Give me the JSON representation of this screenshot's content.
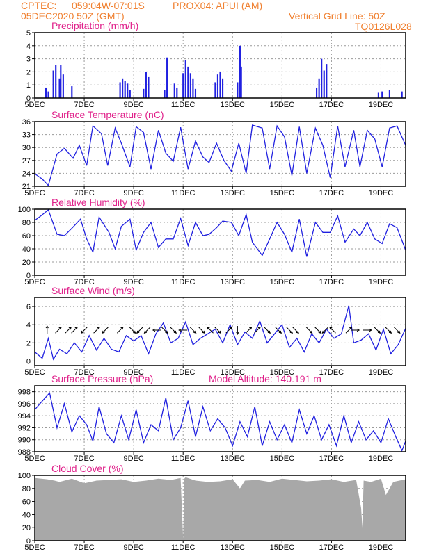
{
  "header": {
    "source": "CPTEC:",
    "location": "059:04W-07:01S",
    "station": "PROX04: APUI (AM)",
    "run": "05DEC2020 50Z (GMT)",
    "grid_note": "Vertical Grid Line: 50Z",
    "code": "TQ0126L028"
  },
  "colors": {
    "header": "#f08030",
    "title": "#e0208a",
    "series": "#2020e0",
    "cloud": "#a8a8a8"
  },
  "chart_data": [
    {
      "type": "bar",
      "title": "Precipitation (mm/h)",
      "x_ticks": [
        "5DEC",
        "7DEC",
        "9DEC",
        "11DEC",
        "13DEC",
        "15DEC",
        "17DEC",
        "19DEC"
      ],
      "x_range": [
        0,
        15
      ],
      "ylim": [
        0,
        5
      ],
      "y_ticks": [
        0,
        1,
        2,
        3,
        4,
        5
      ],
      "grid": true,
      "bars": [
        {
          "x": 0.45,
          "y": 0.8
        },
        {
          "x": 0.55,
          "y": 0.5
        },
        {
          "x": 0.75,
          "y": 2.1
        },
        {
          "x": 0.85,
          "y": 2.5
        },
        {
          "x": 1.0,
          "y": 1.5
        },
        {
          "x": 1.05,
          "y": 2.5
        },
        {
          "x": 1.15,
          "y": 1.8
        },
        {
          "x": 1.5,
          "y": 0.9
        },
        {
          "x": 3.45,
          "y": 1.2
        },
        {
          "x": 3.55,
          "y": 1.5
        },
        {
          "x": 3.65,
          "y": 1.3
        },
        {
          "x": 3.75,
          "y": 1.1
        },
        {
          "x": 3.85,
          "y": 0.6
        },
        {
          "x": 4.4,
          "y": 0.7
        },
        {
          "x": 4.5,
          "y": 2.0
        },
        {
          "x": 4.6,
          "y": 1.6
        },
        {
          "x": 5.25,
          "y": 0.6
        },
        {
          "x": 5.35,
          "y": 3.1
        },
        {
          "x": 5.65,
          "y": 1.1
        },
        {
          "x": 5.75,
          "y": 0.8
        },
        {
          "x": 6.0,
          "y": 1.9
        },
        {
          "x": 6.1,
          "y": 2.9
        },
        {
          "x": 6.2,
          "y": 2.4
        },
        {
          "x": 6.3,
          "y": 1.9
        },
        {
          "x": 6.4,
          "y": 1.5
        },
        {
          "x": 6.5,
          "y": 0.7
        },
        {
          "x": 7.3,
          "y": 1.2
        },
        {
          "x": 7.4,
          "y": 1.8
        },
        {
          "x": 7.5,
          "y": 2.0
        },
        {
          "x": 7.6,
          "y": 1.5
        },
        {
          "x": 8.2,
          "y": 1.2
        },
        {
          "x": 8.3,
          "y": 4.0
        },
        {
          "x": 8.35,
          "y": 2.4
        },
        {
          "x": 11.4,
          "y": 0.8
        },
        {
          "x": 11.5,
          "y": 1.5
        },
        {
          "x": 11.6,
          "y": 3.0
        },
        {
          "x": 11.7,
          "y": 2.1
        },
        {
          "x": 11.8,
          "y": 2.6
        },
        {
          "x": 13.9,
          "y": 0.4
        },
        {
          "x": 14.05,
          "y": 0.5
        },
        {
          "x": 14.35,
          "y": 0.6
        },
        {
          "x": 14.85,
          "y": 0.5
        }
      ]
    },
    {
      "type": "line",
      "title": "Surface Temperature (nC)",
      "x_ticks": [
        "5DEC",
        "7DEC",
        "9DEC",
        "11DEC",
        "13DEC",
        "15DEC",
        "17DEC",
        "19DEC"
      ],
      "x_range": [
        0,
        15
      ],
      "ylim": [
        21,
        36
      ],
      "y_ticks": [
        21,
        24,
        27,
        30,
        33,
        36
      ],
      "grid": true,
      "x": [
        0,
        0.3,
        0.55,
        0.9,
        1.2,
        1.55,
        1.8,
        2.1,
        2.35,
        2.7,
        2.95,
        3.25,
        3.5,
        3.85,
        4.1,
        4.4,
        4.7,
        5.0,
        5.3,
        5.6,
        5.9,
        6.2,
        6.5,
        6.8,
        7.05,
        7.35,
        7.65,
        7.95,
        8.25,
        8.55,
        8.8,
        9.2,
        9.5,
        9.8,
        10.1,
        10.4,
        10.7,
        11.0,
        11.35,
        11.65,
        11.95,
        12.25,
        12.55,
        12.9,
        13.15,
        13.45,
        13.75,
        14.05,
        14.35,
        14.65,
        15.0
      ],
      "y": [
        23.9,
        22.7,
        21.2,
        28.5,
        29.8,
        27.5,
        30.5,
        25.8,
        35.0,
        33.2,
        25.8,
        34.5,
        31.0,
        25.5,
        34.8,
        33.5,
        25.0,
        34.0,
        28.7,
        26.8,
        34.7,
        25.0,
        31.5,
        27.8,
        26.5,
        31.0,
        27.0,
        24.5,
        31.0,
        24.0,
        35.2,
        34.5,
        25.0,
        35.0,
        32.5,
        23.5,
        34.8,
        24.0,
        34.5,
        30.5,
        23.0,
        35.0,
        25.5,
        34.0,
        25.5,
        34.0,
        32.0,
        25.5,
        34.5,
        35.0,
        30.5
      ]
    },
    {
      "type": "line",
      "title": "Relative Humidity (%)",
      "x_ticks": [
        "5DEC",
        "7DEC",
        "9DEC",
        "11DEC",
        "13DEC",
        "15DEC",
        "17DEC",
        "19DEC"
      ],
      "x_range": [
        0,
        15
      ],
      "ylim": [
        0,
        100
      ],
      "y_ticks": [
        0,
        20,
        40,
        60,
        80,
        100
      ],
      "grid": true,
      "x": [
        0,
        0.25,
        0.55,
        0.9,
        1.2,
        1.55,
        1.85,
        2.1,
        2.35,
        2.6,
        3.0,
        3.25,
        3.5,
        3.85,
        4.1,
        4.4,
        4.7,
        5.0,
        5.3,
        5.6,
        5.9,
        6.2,
        6.5,
        6.8,
        7.05,
        7.35,
        7.6,
        7.95,
        8.25,
        8.55,
        8.8,
        9.2,
        9.5,
        9.8,
        10.1,
        10.4,
        10.7,
        11.0,
        11.35,
        11.65,
        11.95,
        12.25,
        12.55,
        12.9,
        13.15,
        13.45,
        13.75,
        14.05,
        14.35,
        14.65,
        15.0
      ],
      "y": [
        83,
        90,
        99,
        62,
        60,
        73,
        85,
        55,
        35,
        88,
        65,
        40,
        74,
        85,
        38,
        65,
        80,
        42,
        55,
        55,
        86,
        45,
        80,
        60,
        62,
        72,
        82,
        80,
        60,
        92,
        50,
        30,
        55,
        80,
        62,
        35,
        85,
        28,
        80,
        65,
        65,
        90,
        50,
        70,
        60,
        80,
        55,
        48,
        78,
        72,
        38
      ]
    },
    {
      "type": "line",
      "title": "Surface Wind (m/s)",
      "x_ticks": [
        "5DEC",
        "7DEC",
        "9DEC",
        "11DEC",
        "13DEC",
        "15DEC",
        "17DEC",
        "19DEC"
      ],
      "x_range": [
        0,
        15
      ],
      "ylim": [
        -0.5,
        7
      ],
      "y_ticks": [
        0,
        2,
        4,
        6
      ],
      "grid": true,
      "x": [
        0,
        0.3,
        0.55,
        0.75,
        1.0,
        1.3,
        1.6,
        1.9,
        2.2,
        2.5,
        2.8,
        3.1,
        3.4,
        3.7,
        4.0,
        4.3,
        4.6,
        4.9,
        5.2,
        5.5,
        5.8,
        6.1,
        6.4,
        6.7,
        7.0,
        7.3,
        7.6,
        7.9,
        8.2,
        8.5,
        8.8,
        9.1,
        9.4,
        9.7,
        10.0,
        10.3,
        10.6,
        10.9,
        11.2,
        11.5,
        11.8,
        12.1,
        12.4,
        12.7,
        12.9,
        13.2,
        13.5,
        13.8,
        14.1,
        14.4,
        14.7,
        15.0
      ],
      "y": [
        1.0,
        0.3,
        2.5,
        0.2,
        1.3,
        0.8,
        2.0,
        1.0,
        2.8,
        1.2,
        2.5,
        1.3,
        1.0,
        2.8,
        2.2,
        2.8,
        0.8,
        3.0,
        4.2,
        2.0,
        2.5,
        4.3,
        1.8,
        2.5,
        3.0,
        3.5,
        2.0,
        4.0,
        1.8,
        3.2,
        2.5,
        4.4,
        2.0,
        3.0,
        4.0,
        1.5,
        2.5,
        1.0,
        3.0,
        2.0,
        3.5,
        2.5,
        3.0,
        6.1,
        2.0,
        2.3,
        3.0,
        1.2,
        3.5,
        0.8,
        1.8,
        3.6
      ]
    },
    {
      "type": "line",
      "title": "Surface Pressure (hPa)",
      "annotation": "Model Altitude: 140.191 m",
      "x_ticks": [
        "5DEC",
        "7DEC",
        "9DEC",
        "11DEC",
        "13DEC",
        "15DEC",
        "17DEC",
        "19DEC"
      ],
      "x_range": [
        0,
        15
      ],
      "ylim": [
        988,
        999
      ],
      "y_ticks": [
        988,
        990,
        992,
        994,
        996,
        998
      ],
      "grid": true,
      "x": [
        0,
        0.25,
        0.6,
        0.9,
        1.2,
        1.5,
        1.8,
        2.1,
        2.35,
        2.6,
        2.9,
        3.2,
        3.5,
        3.8,
        4.1,
        4.4,
        4.7,
        5.0,
        5.3,
        5.6,
        5.9,
        6.2,
        6.5,
        6.8,
        7.1,
        7.4,
        7.7,
        8.0,
        8.3,
        8.6,
        8.9,
        9.2,
        9.5,
        9.8,
        10.1,
        10.4,
        10.7,
        11.0,
        11.3,
        11.6,
        11.9,
        12.2,
        12.5,
        12.8,
        13.1,
        13.4,
        13.7,
        14.0,
        14.3,
        14.6,
        14.85,
        15.0
      ],
      "y": [
        995.0,
        996.2,
        997.8,
        992.0,
        996.0,
        991.3,
        994.0,
        992.5,
        989.8,
        995.5,
        991.0,
        989.5,
        994.0,
        990.0,
        995.0,
        989.5,
        992.5,
        991.5,
        997.0,
        990.0,
        992.0,
        996.5,
        990.5,
        995.5,
        991.5,
        993.5,
        992.0,
        989.0,
        993.0,
        990.5,
        995.5,
        989.0,
        993.0,
        990.0,
        992.5,
        989.5,
        995.0,
        991.0,
        994.0,
        990.0,
        992.5,
        989.0,
        994.0,
        989.5,
        993.0,
        990.0,
        991.5,
        989.5,
        993.5,
        990.5,
        988.2,
        989.8
      ]
    },
    {
      "type": "area",
      "title": "Cloud Cover (%)",
      "x_ticks": [
        "5DEC",
        "7DEC",
        "9DEC",
        "11DEC",
        "13DEC",
        "15DEC",
        "17DEC",
        "19DEC"
      ],
      "x_range": [
        0,
        15
      ],
      "ylim": [
        0,
        100
      ],
      "y_ticks": [
        0,
        20,
        40,
        60,
        80,
        100
      ],
      "grid": true,
      "x": [
        0,
        0.5,
        0.8,
        1.0,
        1.5,
        2.0,
        2.5,
        3.0,
        3.5,
        4.0,
        4.5,
        5.0,
        5.5,
        5.9,
        6.0,
        6.05,
        6.1,
        6.5,
        7.0,
        7.5,
        8.0,
        8.3,
        8.5,
        9.0,
        9.5,
        10.0,
        10.5,
        11.0,
        11.5,
        12.0,
        12.5,
        13.0,
        13.2,
        13.25,
        13.3,
        13.6,
        14.0,
        14.2,
        14.5,
        15.0
      ],
      "y": [
        96,
        94,
        92,
        90,
        95,
        88,
        92,
        93,
        94,
        90,
        92,
        95,
        93,
        96,
        3,
        95,
        97,
        92,
        90,
        91,
        94,
        80,
        92,
        93,
        90,
        95,
        93,
        91,
        92,
        94,
        90,
        93,
        50,
        20,
        92,
        90,
        95,
        70,
        90,
        94
      ]
    }
  ],
  "wind_arrows": [
    {
      "x": 0.5,
      "dir": "N"
    },
    {
      "x": 0.95,
      "dir": "NE"
    },
    {
      "x": 1.35,
      "dir": "NE"
    },
    {
      "x": 1.6,
      "dir": "NE"
    },
    {
      "x": 2.0,
      "dir": "SW"
    },
    {
      "x": 2.5,
      "dir": "NE"
    },
    {
      "x": 2.85,
      "dir": "SW"
    },
    {
      "x": 3.45,
      "dir": "NE"
    },
    {
      "x": 3.95,
      "dir": "SE"
    },
    {
      "x": 4.25,
      "dir": "SW"
    },
    {
      "x": 4.55,
      "dir": "SW"
    },
    {
      "x": 4.95,
      "dir": "W"
    },
    {
      "x": 5.25,
      "dir": "SE"
    },
    {
      "x": 5.6,
      "dir": "SE"
    },
    {
      "x": 6.0,
      "dir": "W"
    },
    {
      "x": 6.4,
      "dir": "SE"
    },
    {
      "x": 6.75,
      "dir": "SE"
    },
    {
      "x": 7.1,
      "dir": "NW"
    },
    {
      "x": 7.4,
      "dir": "SE"
    },
    {
      "x": 7.85,
      "dir": "NE"
    },
    {
      "x": 8.2,
      "dir": "S"
    },
    {
      "x": 8.65,
      "dir": "NE"
    },
    {
      "x": 9.0,
      "dir": "NE"
    },
    {
      "x": 9.4,
      "dir": "SE"
    },
    {
      "x": 9.85,
      "dir": "SE"
    },
    {
      "x": 10.3,
      "dir": "SE"
    },
    {
      "x": 10.55,
      "dir": "SE"
    },
    {
      "x": 11.1,
      "dir": "SE"
    },
    {
      "x": 11.45,
      "dir": "SE"
    },
    {
      "x": 11.75,
      "dir": "SW"
    },
    {
      "x": 12.05,
      "dir": "NW"
    },
    {
      "x": 12.7,
      "dir": "NE"
    },
    {
      "x": 12.95,
      "dir": "E"
    },
    {
      "x": 13.45,
      "dir": "E"
    },
    {
      "x": 13.85,
      "dir": "SE"
    },
    {
      "x": 14.3,
      "dir": "SE"
    },
    {
      "x": 14.65,
      "dir": "SE"
    }
  ]
}
